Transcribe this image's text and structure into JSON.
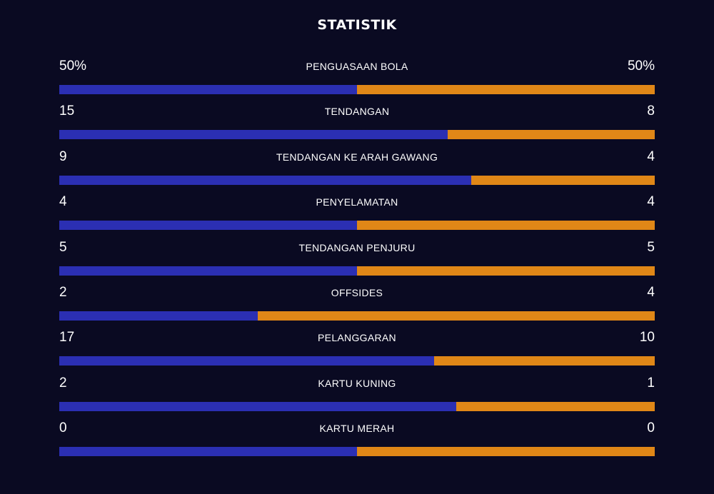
{
  "header": {
    "title": "STATISTIK"
  },
  "colors": {
    "background": "#0a0a22",
    "home": "#2b2fb3",
    "away": "#e08717"
  },
  "stats": [
    {
      "label": "PENGUASAAN BOLA",
      "home": "50%",
      "away": "50%",
      "home_share": 0.5
    },
    {
      "label": "TENDANGAN",
      "home": "15",
      "away": "8",
      "home_share": 0.652
    },
    {
      "label": "TENDANGAN KE ARAH GAWANG",
      "home": "9",
      "away": "4",
      "home_share": 0.692
    },
    {
      "label": "PENYELAMATAN",
      "home": "4",
      "away": "4",
      "home_share": 0.5
    },
    {
      "label": "TENDANGAN PENJURU",
      "home": "5",
      "away": "5",
      "home_share": 0.5
    },
    {
      "label": "OFFSIDES",
      "home": "2",
      "away": "4",
      "home_share": 0.333
    },
    {
      "label": "PELANGGARAN",
      "home": "17",
      "away": "10",
      "home_share": 0.63
    },
    {
      "label": "KARTU KUNING",
      "home": "2",
      "away": "1",
      "home_share": 0.667
    },
    {
      "label": "KARTU MERAH",
      "home": "0",
      "away": "0",
      "home_share": 0.5
    }
  ]
}
